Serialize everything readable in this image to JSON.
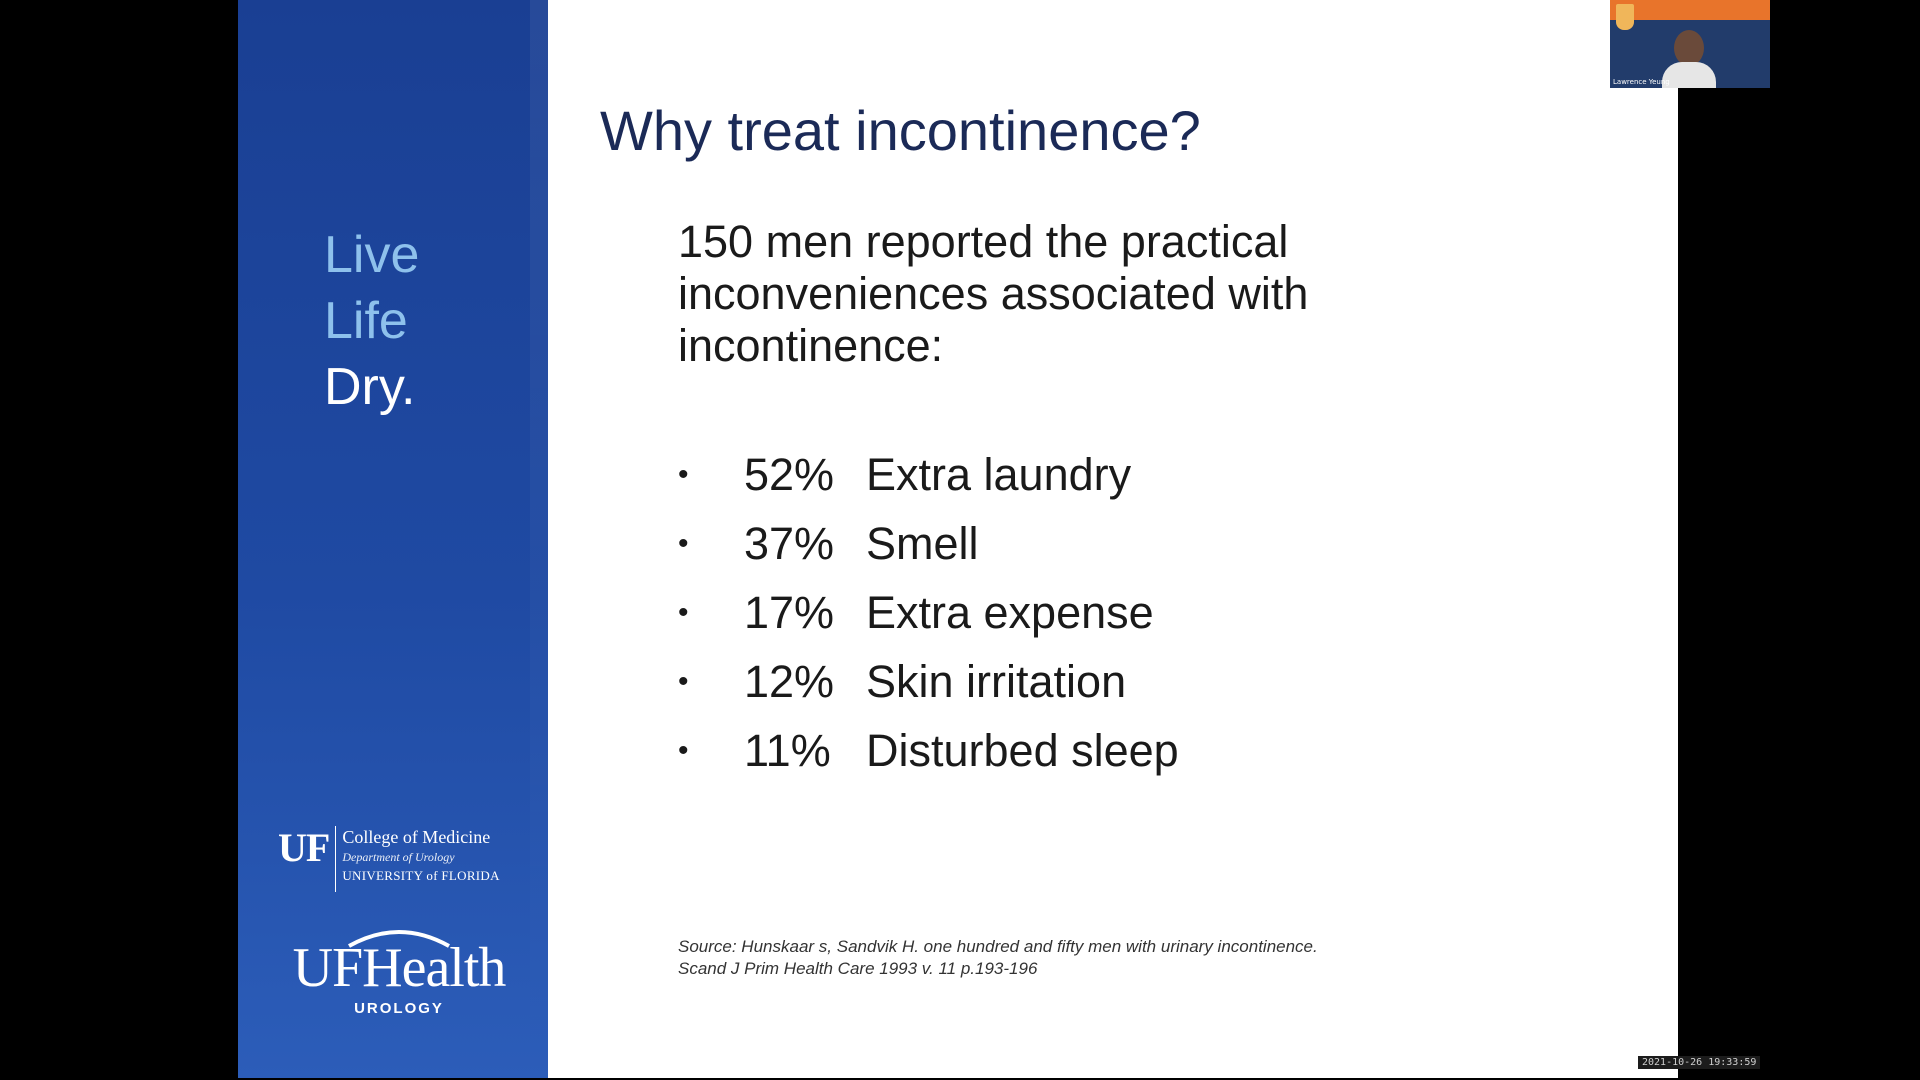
{
  "slide": {
    "title": "Why treat incontinence?",
    "intro": "150 men reported the practical inconveniences associated with incontinence:",
    "items": [
      {
        "bullet": "•",
        "percent": "52%",
        "label": "Extra laundry"
      },
      {
        "bullet": "•",
        "percent": "37%",
        "label": "Smell"
      },
      {
        "bullet": "•",
        "percent": "17%",
        "label": "Extra expense"
      },
      {
        "bullet": "•",
        "percent": "12%",
        "label": "Skin irritation"
      },
      {
        "bullet": "•",
        "percent": "11%",
        "label": "Disturbed sleep"
      }
    ],
    "source_line1": "Source: Hunskaar s, Sandvik H. one hundred and fifty men with urinary incontinence.",
    "source_line2": "Scand J Prim Health Care 1993 v. 11 p.193-196"
  },
  "sidebar": {
    "tagline": [
      "Live",
      "Life",
      "Dry."
    ],
    "uf_mark": "UF",
    "college": "College of Medicine",
    "department": "Department of Urology",
    "university": "UNIVERSITY of FLORIDA",
    "health_name": "UFHealth",
    "health_sub": "UROLOGY"
  },
  "video": {
    "participant_name": "Lawrence Yeung"
  },
  "timestamp": "2021-10-26 19:33:59",
  "colors": {
    "sidebar_blue": "#1f4aa3",
    "tagline_light": "#8ec1ec",
    "title_navy": "#1b2a57",
    "banner_orange": "#e8742b"
  }
}
